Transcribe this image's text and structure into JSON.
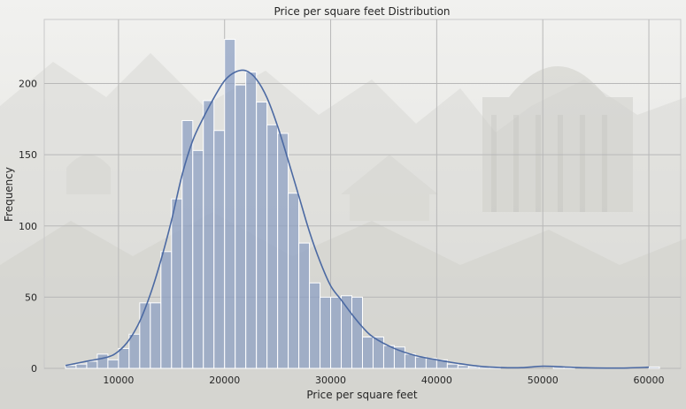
{
  "chart_data": {
    "type": "histogram",
    "title": "Price per square feet Distribution",
    "xlabel": "Price per square feet",
    "ylabel": "Frequency",
    "xlim": [
      3000,
      63000
    ],
    "ylim": [
      0,
      245
    ],
    "xticks": [
      10000,
      20000,
      30000,
      40000,
      50000,
      60000
    ],
    "yticks": [
      0,
      50,
      100,
      150,
      200
    ],
    "grid": true,
    "bin_edges": [
      5000,
      6000,
      7000,
      8000,
      9000,
      10000,
      11000,
      12000,
      13000,
      14000,
      15000,
      16000,
      17000,
      18000,
      19000,
      20000,
      21000,
      22000,
      23000,
      24000,
      25000,
      26000,
      27000,
      28000,
      29000,
      30000,
      31000,
      32000,
      33000,
      34000,
      35000,
      36000,
      37000,
      38000,
      39000,
      40000,
      41000,
      42000,
      43000,
      44000,
      45000,
      46000,
      47000,
      48000,
      49000,
      50000,
      51000,
      52000,
      53000,
      54000,
      55000,
      56000,
      57000,
      58000,
      59000,
      60000,
      61000
    ],
    "counts": [
      2,
      3,
      5,
      10,
      6,
      14,
      24,
      46,
      46,
      82,
      119,
      174,
      153,
      188,
      167,
      231,
      199,
      208,
      187,
      171,
      165,
      123,
      88,
      60,
      50,
      50,
      51,
      50,
      22,
      22,
      16,
      15,
      10,
      8,
      7,
      6,
      3,
      2,
      1,
      1,
      1,
      0,
      0,
      0,
      0,
      0,
      1,
      1,
      0,
      0,
      0,
      0,
      0,
      0,
      0,
      1
    ],
    "kde": {
      "x": [
        5000,
        7000,
        9000,
        10000,
        11000,
        12000,
        13000,
        14000,
        15000,
        16000,
        17000,
        18000,
        19000,
        20000,
        21000,
        22000,
        23000,
        24000,
        25000,
        26000,
        27000,
        28000,
        29000,
        30000,
        31000,
        32000,
        33000,
        34000,
        36000,
        38000,
        40000,
        42000,
        44000,
        46000,
        48000,
        50000,
        52000,
        54000,
        56000,
        58000,
        60000
      ],
      "y": [
        2,
        5,
        8,
        12,
        20,
        33,
        52,
        76,
        104,
        136,
        160,
        176,
        190,
        202,
        208,
        209,
        203,
        190,
        170,
        146,
        121,
        96,
        75,
        58,
        48,
        38,
        29,
        22,
        14,
        9,
        6,
        3.5,
        1.5,
        0.6,
        0.5,
        1.5,
        1,
        0.4,
        0.2,
        0.3,
        0.8
      ]
    }
  }
}
